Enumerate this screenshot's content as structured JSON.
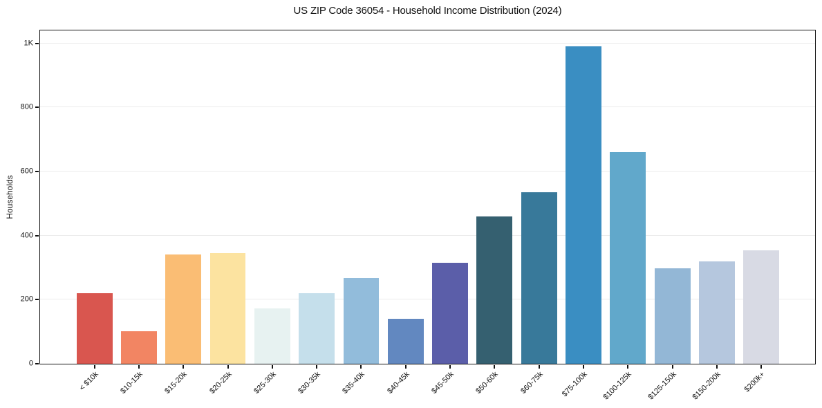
{
  "chart_data": {
    "type": "bar",
    "title": "US ZIP Code 36054 - Household Income Distribution (2024)",
    "xlabel": "",
    "ylabel": "Households",
    "categories": [
      "< $10k",
      "$10-15k",
      "$15-20k",
      "$20-25k",
      "$25-30k",
      "$30-35k",
      "$35-40k",
      "$40-45k",
      "$45-50k",
      "$50-60k",
      "$60-75k",
      "$75-100k",
      "$100-125k",
      "$125-150k",
      "$150-200k",
      "$200k+"
    ],
    "values": [
      221,
      102,
      342,
      345,
      172,
      221,
      268,
      140,
      314,
      460,
      536,
      990,
      660,
      298,
      320,
      354
    ],
    "bar_colors": [
      "#d9564f",
      "#f28563",
      "#fabd74",
      "#fce3a0",
      "#e7f2f1",
      "#c5dfeb",
      "#92bcdb",
      "#6288c0",
      "#5b5ea9",
      "#356070",
      "#38799a",
      "#3a8ec2",
      "#61a8cb",
      "#93b7d6",
      "#b5c7de",
      "#d8dae4"
    ],
    "ylim": [
      0,
      1040
    ],
    "yticks": [
      {
        "value": 0,
        "label": "0"
      },
      {
        "value": 200,
        "label": "200"
      },
      {
        "value": 400,
        "label": "400"
      },
      {
        "value": 600,
        "label": "600"
      },
      {
        "value": 800,
        "label": "800"
      },
      {
        "value": 1000,
        "label": "1K"
      }
    ],
    "grid": "horizontal",
    "legend": "none",
    "background_color": "#ffffff",
    "frame_color": "#111111",
    "gridline_color": "#ebebeb"
  }
}
